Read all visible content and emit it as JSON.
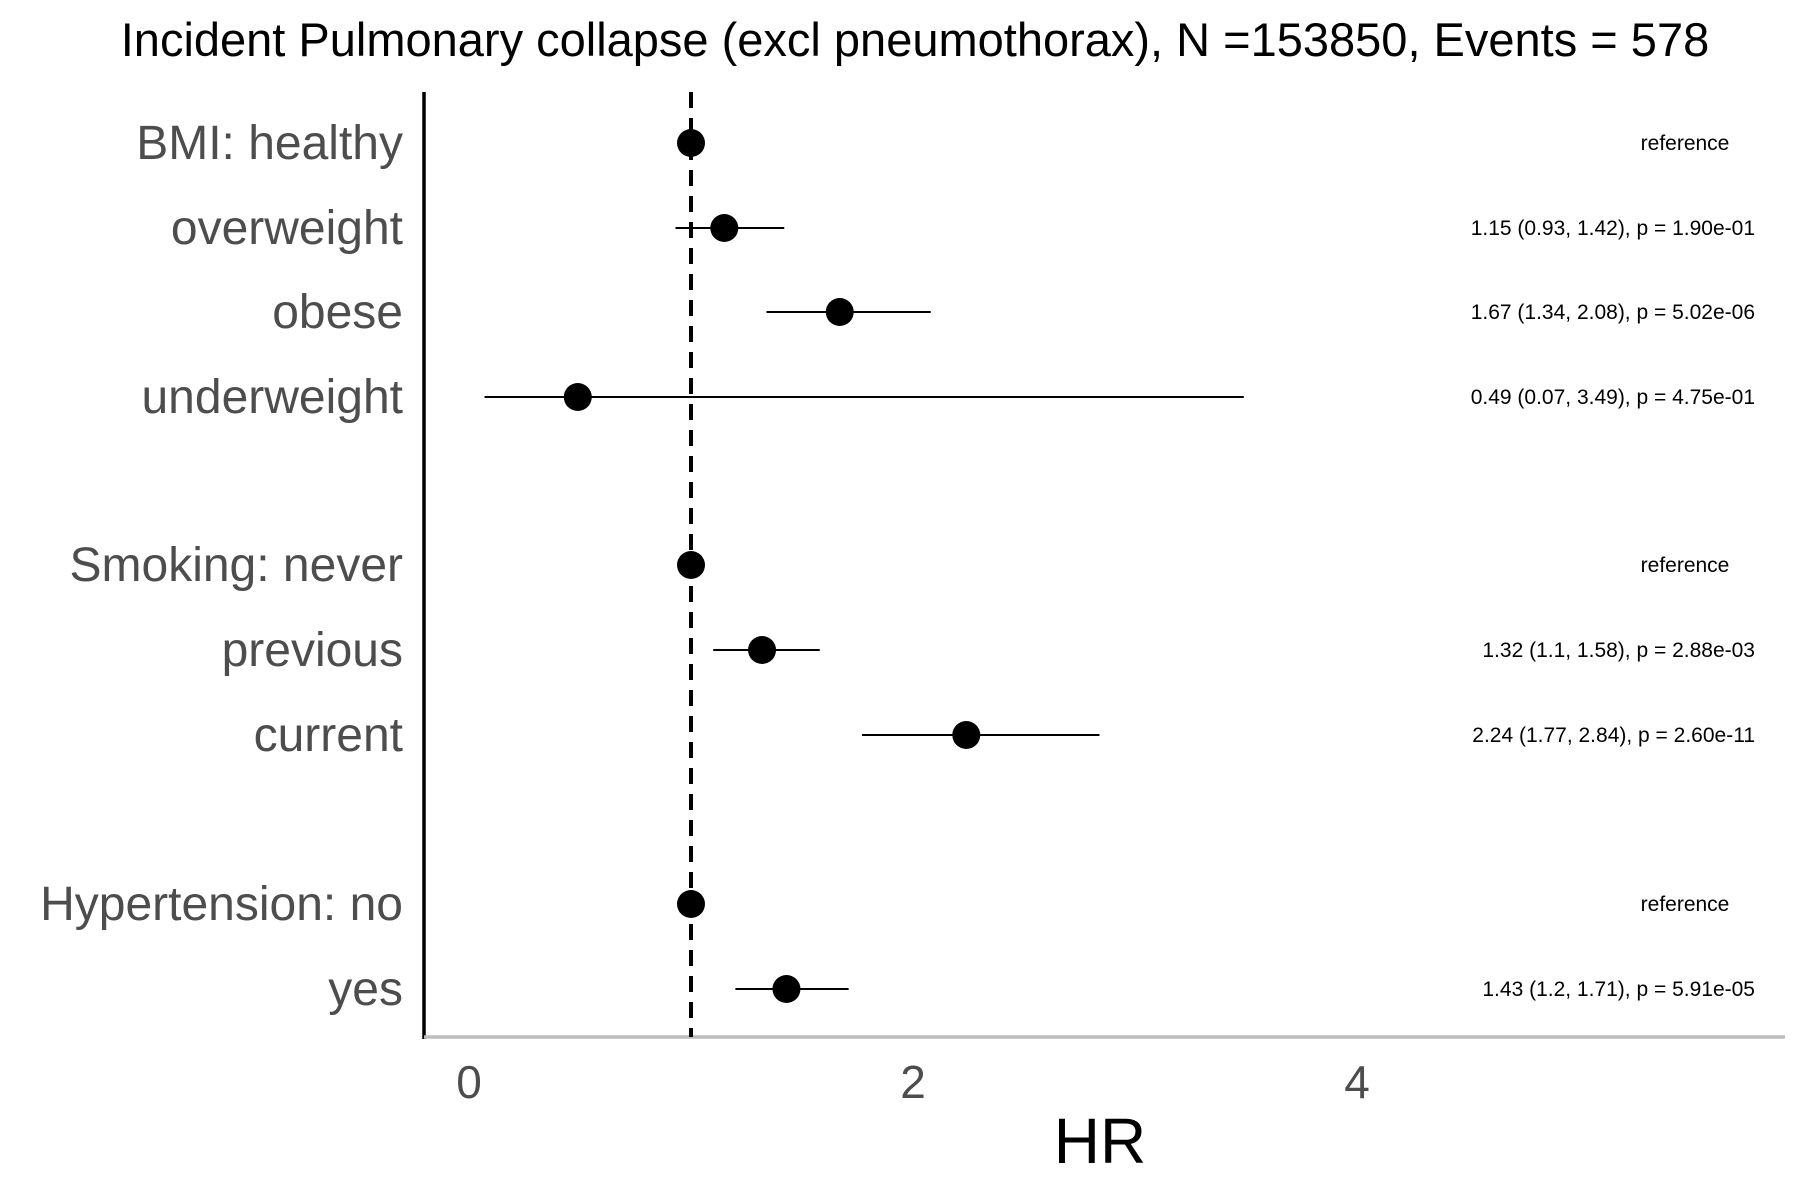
{
  "chart_data": {
    "type": "forest",
    "title": "Incident Pulmonary collapse (excl pneumothorax), N =153850, Events = 578",
    "xlabel": "HR",
    "xlim": [
      -0.2,
      5.9
    ],
    "xticks": [
      0,
      2,
      4
    ],
    "reference_line": 1,
    "rows": [
      {
        "label": "BMI: healthy",
        "hr": 1.0,
        "lower": null,
        "upper": null,
        "text": "reference"
      },
      {
        "label": "overweight",
        "hr": 1.15,
        "lower": 0.93,
        "upper": 1.42,
        "text": "1.15 (0.93, 1.42), p = 1.90e-01"
      },
      {
        "label": "obese",
        "hr": 1.67,
        "lower": 1.34,
        "upper": 2.08,
        "text": "1.67 (1.34, 2.08), p = 5.02e-06"
      },
      {
        "label": "underweight",
        "hr": 0.49,
        "lower": 0.07,
        "upper": 3.49,
        "text": "0.49 (0.07, 3.49), p = 4.75e-01"
      },
      {
        "label": "Smoking: never",
        "hr": 1.0,
        "lower": null,
        "upper": null,
        "text": "reference"
      },
      {
        "label": "previous",
        "hr": 1.32,
        "lower": 1.1,
        "upper": 1.58,
        "text": "1.32 (1.1, 1.58), p = 2.88e-03"
      },
      {
        "label": "current",
        "hr": 2.24,
        "lower": 1.77,
        "upper": 2.84,
        "text": "2.24 (1.77, 2.84), p = 2.60e-11"
      },
      {
        "label": "Hypertension: no",
        "hr": 1.0,
        "lower": null,
        "upper": null,
        "text": "reference"
      },
      {
        "label": "yes",
        "hr": 1.43,
        "lower": 1.2,
        "upper": 1.71,
        "text": "1.43 (1.2, 1.71), p = 5.91e-05"
      }
    ]
  }
}
